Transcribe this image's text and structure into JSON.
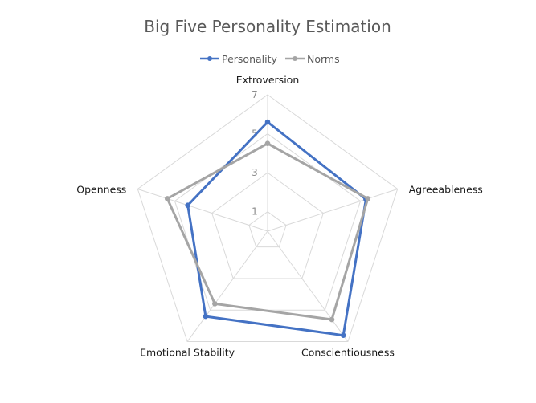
{
  "chart_data": {
    "type": "radar",
    "title": "Big Five Personality Estimation",
    "categories": [
      "Extroversion",
      "Agreeableness",
      "Conscientiousness",
      "Emotional Stability",
      "Openness"
    ],
    "scale": {
      "min": 0,
      "max": 7,
      "ticks": [
        1,
        3,
        5,
        7
      ]
    },
    "series": [
      {
        "name": "Personality",
        "color": "#4472C4",
        "values": [
          5.6,
          5.3,
          6.6,
          5.4,
          4.3
        ]
      },
      {
        "name": "Norms",
        "color": "#A5A5A5",
        "values": [
          4.5,
          5.4,
          5.6,
          4.6,
          5.4
        ]
      }
    ],
    "legend": "top",
    "grid": true
  }
}
